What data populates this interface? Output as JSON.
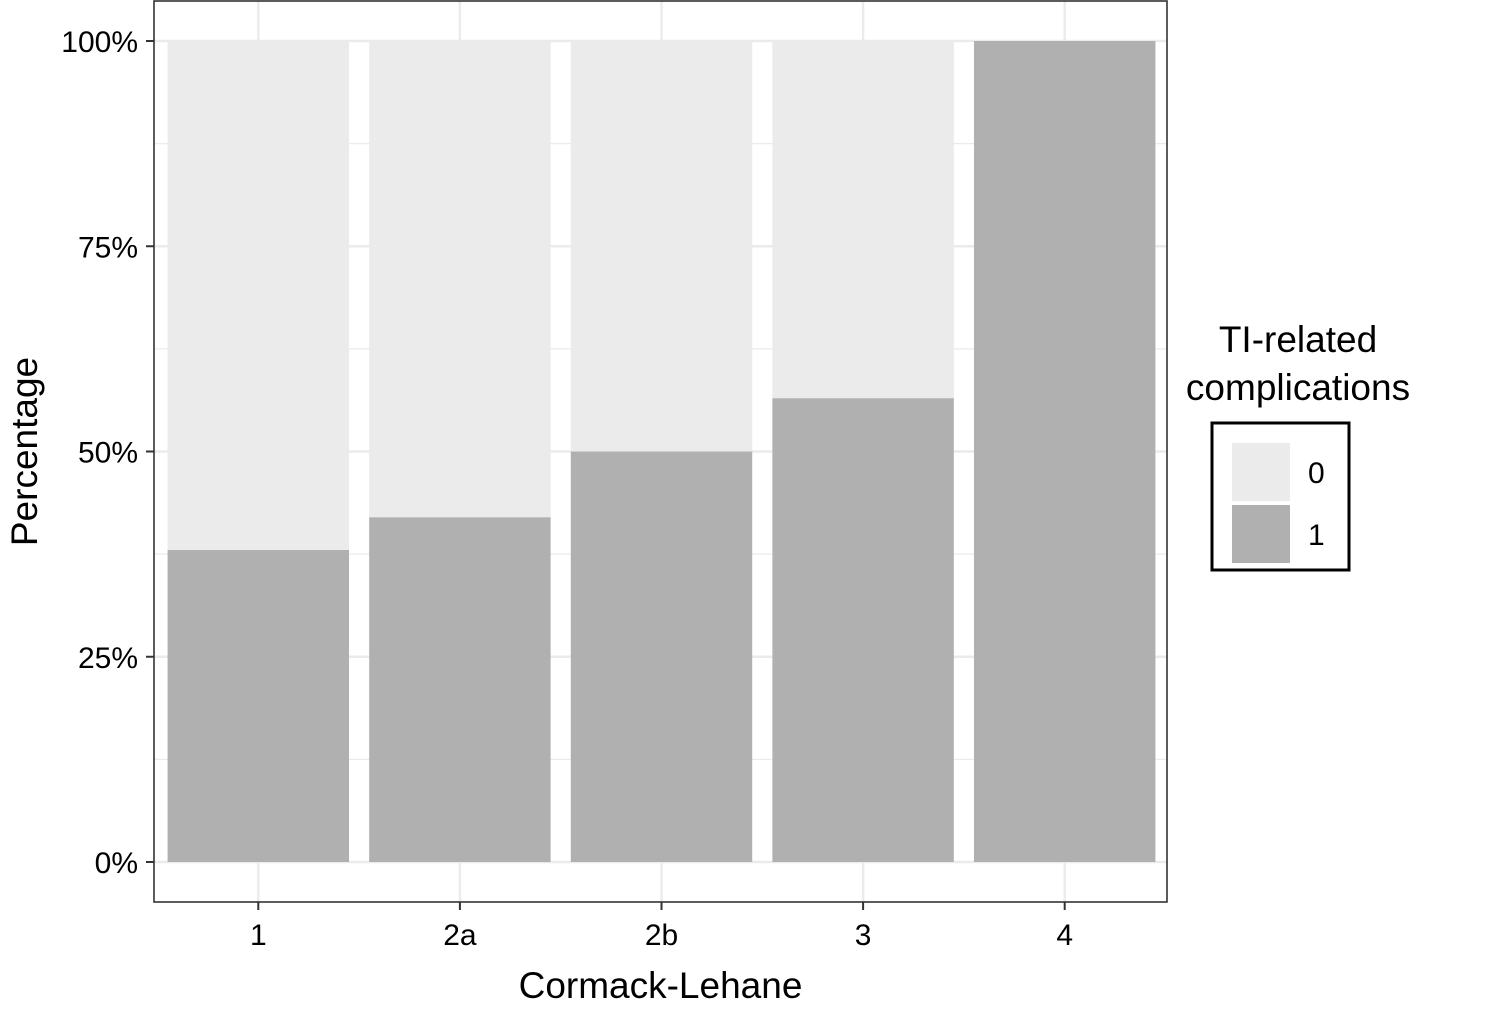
{
  "chart_data": {
    "type": "bar",
    "stacked": true,
    "normalized": true,
    "xlabel": "Cormack-Lehane",
    "ylabel": "Percentage",
    "categories": [
      "1",
      "2a",
      "2b",
      "3",
      "4"
    ],
    "series": [
      {
        "name": "0",
        "values": [
          0.62,
          0.58,
          0.5,
          0.435,
          0.0
        ],
        "color": "#ebebeb"
      },
      {
        "name": "1",
        "values": [
          0.38,
          0.42,
          0.5,
          0.565,
          1.0
        ],
        "color": "#b0b0b0"
      }
    ],
    "ylim": [
      0,
      1
    ],
    "yticks": [
      {
        "value": 0,
        "label": "0%"
      },
      {
        "value": 0.25,
        "label": "25%"
      },
      {
        "value": 0.5,
        "label": "50%"
      },
      {
        "value": 0.75,
        "label": "75%"
      },
      {
        "value": 1.0,
        "label": "100%"
      }
    ],
    "grid": true,
    "legend": {
      "title_lines": [
        "TI-related",
        "complications"
      ],
      "position": "right",
      "entries": [
        {
          "label": "0",
          "color": "#ebebeb"
        },
        {
          "label": "1",
          "color": "#b0b0b0"
        }
      ]
    },
    "colors": {
      "grid": "#ebebeb",
      "panel_border": "#333333",
      "legend_border": "#000000"
    }
  }
}
